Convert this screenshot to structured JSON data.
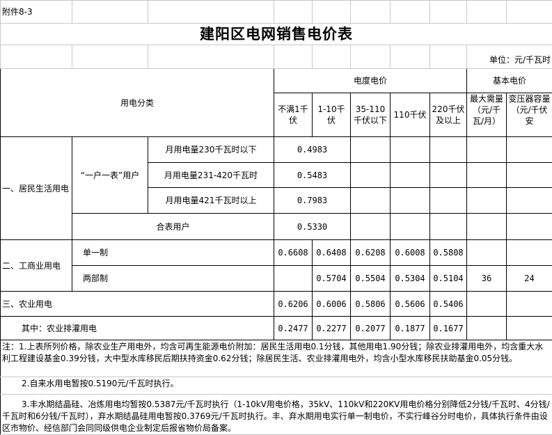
{
  "attachment_label": "附件8-3",
  "title": "建阳区电网销售电价表",
  "unit": "单位：元/千瓦时",
  "header": {
    "category": "用电分类",
    "energy_price": "电度电价",
    "basic_price": "基本电价",
    "voltages": [
      "不满1千伏",
      "1-10千伏",
      "35-110千伏以下",
      "110千伏",
      "220千伏及以上"
    ],
    "basic_cols": [
      "最大需量（元/千瓦/月）",
      "变压器容量（元/千伏安"
    ]
  },
  "residential": {
    "label": "一、居民生活用电",
    "one_meter_label": "“一户一表”用户",
    "tiers": [
      {
        "label": "月用电量230千瓦时以下",
        "price": "0.4983"
      },
      {
        "label": "月用电量231-420千瓦时",
        "price": "0.5483"
      },
      {
        "label": "月用电量421千瓦时以上",
        "price": "0.7983"
      }
    ],
    "shared": {
      "label": "合表用户",
      "price": "0.5330"
    }
  },
  "commercial": {
    "label": "二、工商业用电",
    "single": {
      "label": "单一制",
      "prices": [
        "0.6608",
        "0.6408",
        "0.6208",
        "0.6008",
        "0.5808"
      ]
    },
    "two_part": {
      "label": "两部制",
      "prices": [
        "",
        "0.5704",
        "0.5504",
        "0.5304",
        "0.5104"
      ],
      "max_demand": "36",
      "transformer": "24"
    }
  },
  "agriculture": {
    "label": "三、农业用电",
    "prices": [
      "0.6206",
      "0.6006",
      "0.5806",
      "0.5606",
      "0.5406"
    ],
    "irrigation": {
      "label": "其中：农业排灌用电",
      "prices": [
        "0.2477",
        "0.2277",
        "0.2077",
        "0.1877",
        "0.1677"
      ]
    }
  },
  "notes": [
    "注：1.上表所列价格，除农业生产用电外，均含可再生能源电价附加：居民生活用电0.1分钱，其他用电1.90分钱；除农业排灌用电外，均含重大水利工程建设基金0.39分钱，大中型水库移民后期扶持资金0.62分钱；除居民生活、农业排灌用电外，均含小型水库移民扶助基金0.05分钱。",
    "2.自来水用电暂按0.5190元/千瓦时执行。",
    "3.丰水期结晶硅、冶炼用电均暂按0.5387元/千瓦时执行（1-10kV用电价格，35kV、110kV和220KV用电价格分别降低2分钱/千瓦时、4分钱/千瓦时和6分钱/千瓦时），弃水期结晶硅用电暂按0.3769元/千瓦时执行。丰、弃水期用电实行单一制电价，不实行峰谷分时电价，具体执行条件由设区市物价、经信部门会同同级供电企业制定后报省物价局备案。"
  ]
}
